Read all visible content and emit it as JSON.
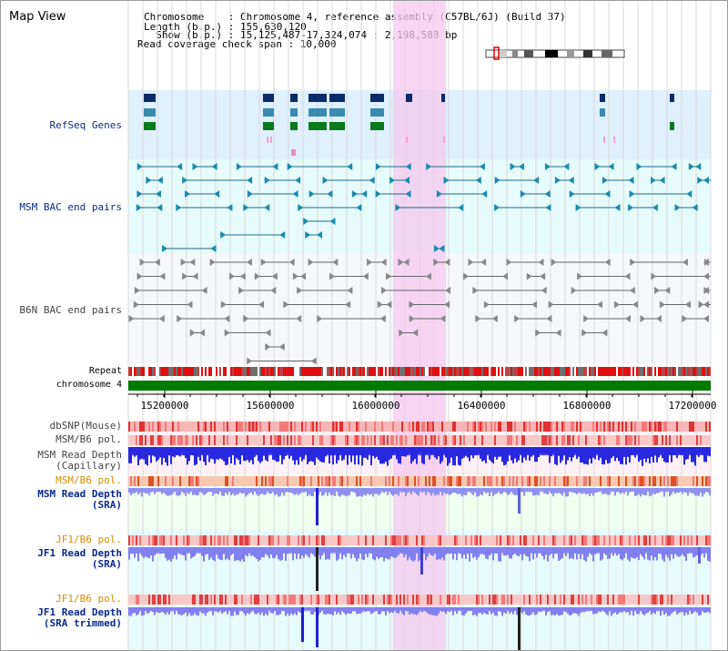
{
  "title": "Map View",
  "info": {
    "chromosome": "Chromosome    : Chromosome 4, reference assembly (C57BL/6J) (Build 37)",
    "length": "Length (b.p.) : 155,630,120",
    "show": "  Show (b.p.) : 15,125,487-17,324,074 : 2,198,588 bp",
    "span": "Read coverage check span : 10,000"
  },
  "tracks": {
    "refseq": "RefSeq Genes",
    "msm_bac": "MSM BAC end pairs",
    "b6n_bac": "B6N BAC end pairs",
    "repeat": "Repeat",
    "chromosome": "chromosome 4",
    "dbsnp": "dbSNP(Mouse)",
    "msm_b6_pol_1": "MSM/B6 pol.",
    "msm_read_depth_cap": "MSM Read Depth\n(Capillary)",
    "msm_b6_pol_2": "MSM/B6 pol.",
    "msm_read_depth_sra": "MSM Read Depth\n(SRA)",
    "jf1_b6_pol_1": "JF1/B6 pol.",
    "jf1_read_depth_sra": "JF1 Read Depth\n(SRA)",
    "jf1_b6_pol_2": "JF1/B6 pol.",
    "jf1_read_depth_trim": "JF1 Read Depth\n(SRA trimmed)"
  },
  "axis_ticks": [
    "15200000",
    "15600000",
    "16000000",
    "16400000",
    "16800000",
    "17200000"
  ],
  "colors": {
    "refseq_bg": "#dff0ff",
    "bac_bg": "#e6fbfb",
    "highlight": "#f9d7f3",
    "chromosome": "#007a00",
    "depth_dark": "#2525e0",
    "depth_light": "#8c8cf0"
  }
}
